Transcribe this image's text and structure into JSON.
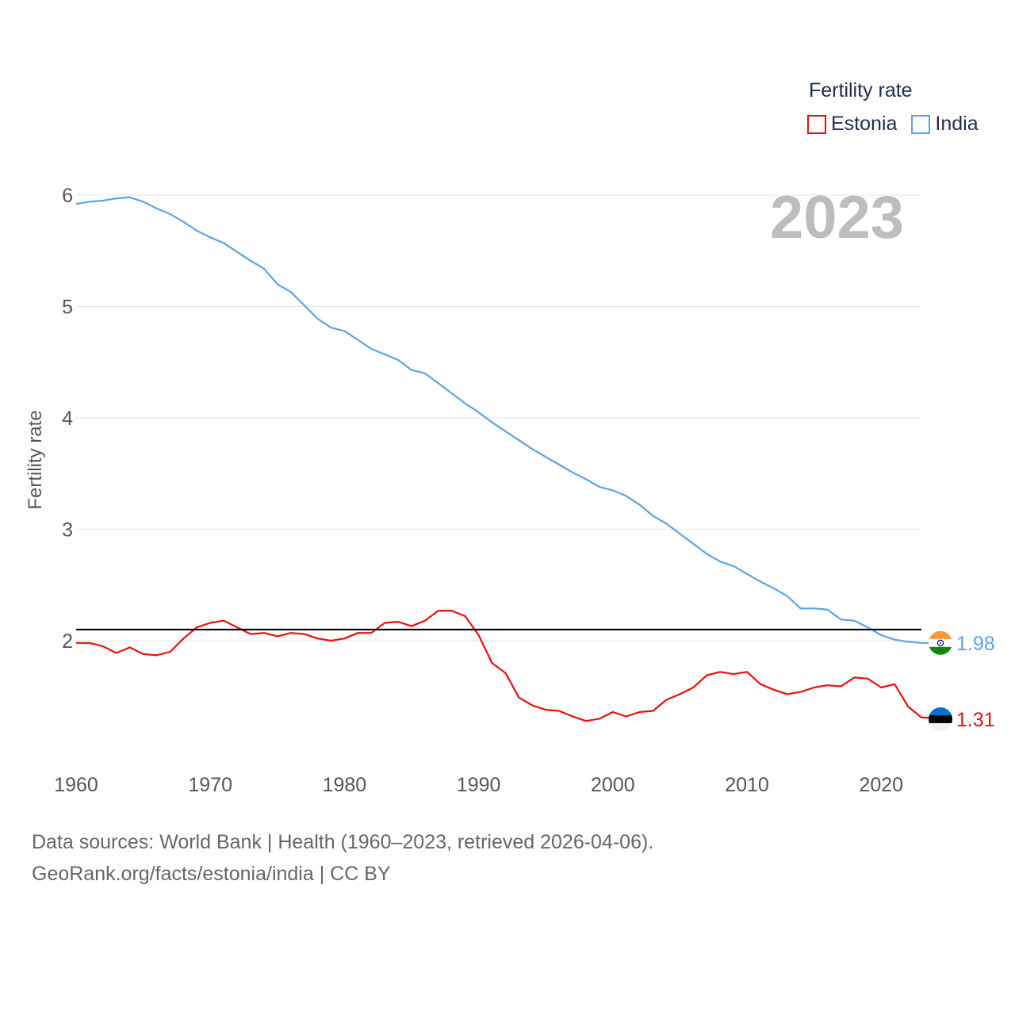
{
  "chart_data": {
    "type": "line",
    "title": "Fertility rate",
    "ylabel": "Fertility rate",
    "xlabel": "",
    "year_label": "2023",
    "xlim": [
      1960,
      2023
    ],
    "ylim": [
      1.0,
      6.2
    ],
    "yticks": [
      2,
      3,
      4,
      5,
      6
    ],
    "xticks": [
      1960,
      1970,
      1980,
      1990,
      2000,
      2010,
      2020
    ],
    "reference_line": 2.1,
    "x": [
      1960,
      1961,
      1962,
      1963,
      1964,
      1965,
      1966,
      1967,
      1968,
      1969,
      1970,
      1971,
      1972,
      1973,
      1974,
      1975,
      1976,
      1977,
      1978,
      1979,
      1980,
      1981,
      1982,
      1983,
      1984,
      1985,
      1986,
      1987,
      1988,
      1989,
      1990,
      1991,
      1992,
      1993,
      1994,
      1995,
      1996,
      1997,
      1998,
      1999,
      2000,
      2001,
      2002,
      2003,
      2004,
      2005,
      2006,
      2007,
      2008,
      2009,
      2010,
      2011,
      2012,
      2013,
      2014,
      2015,
      2016,
      2017,
      2018,
      2019,
      2020,
      2021,
      2022,
      2023
    ],
    "series": [
      {
        "name": "Estonia",
        "color": "#e8100c",
        "end_label": "1.31",
        "values": [
          1.98,
          1.98,
          1.95,
          1.89,
          1.94,
          1.88,
          1.87,
          1.9,
          2.02,
          2.12,
          2.16,
          2.18,
          2.12,
          2.06,
          2.07,
          2.04,
          2.07,
          2.06,
          2.02,
          2.0,
          2.02,
          2.07,
          2.07,
          2.16,
          2.17,
          2.13,
          2.18,
          2.27,
          2.27,
          2.22,
          2.05,
          1.8,
          1.71,
          1.49,
          1.42,
          1.38,
          1.37,
          1.32,
          1.28,
          1.3,
          1.36,
          1.32,
          1.36,
          1.37,
          1.47,
          1.52,
          1.58,
          1.69,
          1.72,
          1.7,
          1.72,
          1.61,
          1.56,
          1.52,
          1.54,
          1.58,
          1.6,
          1.59,
          1.67,
          1.66,
          1.58,
          1.61,
          1.41,
          1.31
        ]
      },
      {
        "name": "India",
        "color": "#5aa3e8",
        "end_label": "1.98",
        "values": [
          5.92,
          5.94,
          5.95,
          5.97,
          5.98,
          5.94,
          5.88,
          5.83,
          5.76,
          5.68,
          5.62,
          5.57,
          5.49,
          5.41,
          5.34,
          5.2,
          5.13,
          5.01,
          4.89,
          4.81,
          4.78,
          4.7,
          4.62,
          4.57,
          4.52,
          4.43,
          4.4,
          4.31,
          4.22,
          4.13,
          4.05,
          3.96,
          3.88,
          3.8,
          3.72,
          3.65,
          3.58,
          3.51,
          3.45,
          3.38,
          3.35,
          3.3,
          3.22,
          3.12,
          3.05,
          2.96,
          2.87,
          2.78,
          2.71,
          2.67,
          2.6,
          2.53,
          2.47,
          2.4,
          2.29,
          2.29,
          2.28,
          2.19,
          2.18,
          2.12,
          2.05,
          2.01,
          1.99,
          1.98
        ]
      }
    ]
  },
  "legend": {
    "title": "Fertility rate"
  },
  "source": {
    "line1": "Data sources: World Bank | Health (1960–2023, retrieved 2026-04-06).",
    "line2": "GeoRank.org/facts/estonia/india | CC BY"
  }
}
